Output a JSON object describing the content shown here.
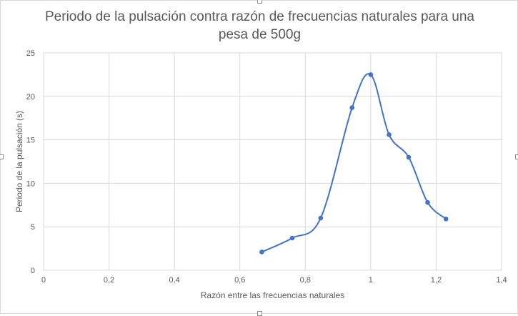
{
  "chart_data": {
    "type": "line",
    "title_lines": [
      "Periodo de la pulsación contra razón de frecuencias naturales para una",
      "pesa de 500g"
    ],
    "xlabel": "Razón entre las frecuencias naturales",
    "ylabel": "Periodo de la pulsación (s)",
    "xlim": [
      0,
      1.4
    ],
    "ylim": [
      0,
      25
    ],
    "x_ticks": [
      "0",
      "0,2",
      "0,4",
      "0,6",
      "0,8",
      "1",
      "1,2",
      "1,4"
    ],
    "y_ticks": [
      "0",
      "5",
      "10",
      "15",
      "20",
      "25"
    ],
    "grid": true,
    "smooth": true,
    "series": [
      {
        "color": "#4472c4",
        "x": [
          0.667,
          0.76,
          0.847,
          0.943,
          1.0,
          1.056,
          1.116,
          1.174,
          1.23
        ],
        "y": [
          2.1,
          3.7,
          6.0,
          18.7,
          22.5,
          15.6,
          13.0,
          7.8,
          5.9
        ]
      }
    ]
  }
}
